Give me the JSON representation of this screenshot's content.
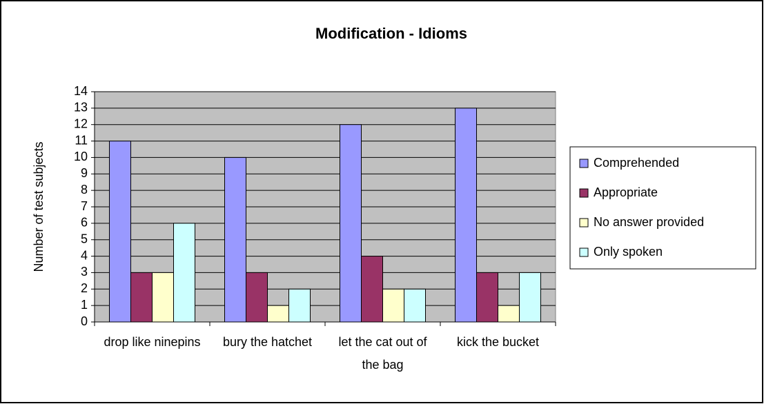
{
  "chart_data": {
    "type": "bar",
    "title": "Modification - Idioms",
    "y_label": "Number of test subjects",
    "categories": [
      "drop like ninepins",
      "bury the hatchet",
      "let the cat out of the bag",
      "kick the bucket"
    ],
    "series": [
      {
        "name": "Comprehended",
        "color": "#9999ff",
        "values": [
          11,
          10,
          12,
          13
        ]
      },
      {
        "name": "Appropriate",
        "color": "#993366",
        "values": [
          3,
          3,
          4,
          3
        ]
      },
      {
        "name": "No answer provided",
        "color": "#ffffcc",
        "values": [
          3,
          1,
          2,
          1
        ]
      },
      {
        "name": "Only spoken",
        "color": "#ccffff",
        "values": [
          6,
          2,
          2,
          3
        ]
      }
    ],
    "ylim": [
      0,
      14
    ],
    "yticks": [
      0,
      1,
      2,
      3,
      4,
      5,
      6,
      7,
      8,
      9,
      10,
      11,
      12,
      13,
      14
    ],
    "grid": true,
    "plot_background": "#c0c0c0",
    "legend": "right"
  }
}
